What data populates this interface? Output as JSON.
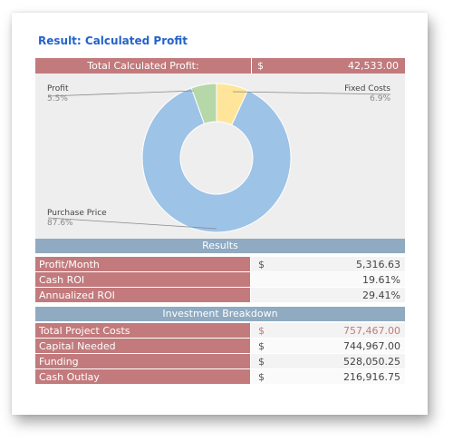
{
  "title": "Result: Calculated Profit",
  "total": {
    "label": "Total Calculated Profit:",
    "currency": "$",
    "value": "42,533.00"
  },
  "chart_data": {
    "type": "pie",
    "donut": true,
    "slices": [
      {
        "name": "Purchase Price",
        "label": "87.6%",
        "value": 87.6,
        "color": "#9dc3e6"
      },
      {
        "name": "Profit",
        "label": "5.5%",
        "value": 5.5,
        "color": "#b6d7a8"
      },
      {
        "name": "Fixed Costs",
        "label": "6.9%",
        "value": 6.9,
        "color": "#ffe599"
      }
    ]
  },
  "results": {
    "header": "Results",
    "rows": [
      {
        "label": "Profit/Month",
        "currency": "$",
        "value": "5,316.63"
      },
      {
        "label": "Cash ROI",
        "currency": "",
        "value": "19.61%"
      },
      {
        "label": "Annualized ROI",
        "currency": "",
        "value": "29.41%"
      }
    ]
  },
  "breakdown": {
    "header": "Investment Breakdown",
    "rows": [
      {
        "label": "Total Project Costs",
        "currency": "$",
        "value": "757,467.00"
      },
      {
        "label": "Capital Needed",
        "currency": "$",
        "value": "744,967.00"
      },
      {
        "label": "Funding",
        "currency": "$",
        "value": "528,050.25"
      },
      {
        "label": "Cash Outlay",
        "currency": "$",
        "value": "216,916.75"
      }
    ]
  }
}
